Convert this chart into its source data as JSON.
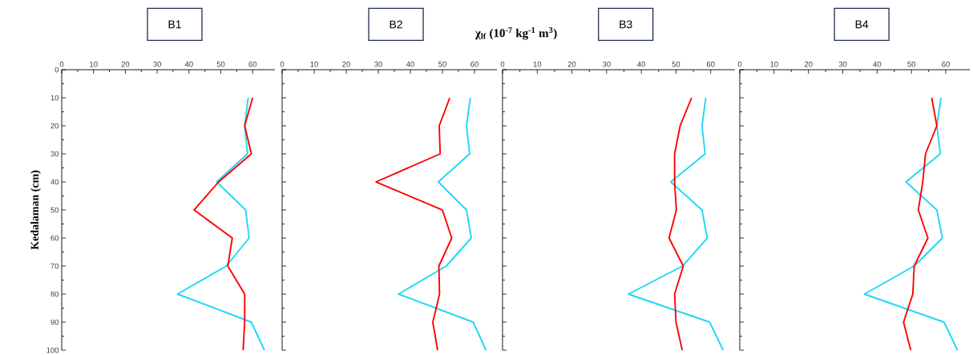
{
  "chart_data": [
    {
      "type": "line",
      "title": "B1",
      "ylabel": "Kedalaman (cm)",
      "orientation": "horizontal",
      "x": [
        10,
        20,
        30,
        40,
        50,
        60,
        70,
        80,
        90,
        100
      ],
      "xlim": [
        0,
        67
      ],
      "xticks": [
        0,
        10,
        20,
        30,
        40,
        50,
        60
      ],
      "ylim": [
        100,
        0
      ],
      "yticks": [
        0,
        10,
        20,
        30,
        40,
        50,
        60,
        70,
        80,
        90,
        100
      ],
      "marker": "none",
      "line_style": "solid",
      "series": [
        {
          "color": "#1ed7f5",
          "values": [
            58.6,
            57.5,
            58.4,
            48.7,
            57.8,
            58.9,
            51.7,
            36.4,
            59.6,
            63.7
          ]
        },
        {
          "color": "#ff0000",
          "values": [
            60,
            57.5,
            59.6,
            49.3,
            41.6,
            53.6,
            52.2,
            57.5,
            57.5,
            57
          ]
        }
      ]
    },
    {
      "type": "line",
      "title": "B2",
      "xlabel": "χ$_{lf}$ (10$^{-7}$ kg$^{-1}$ m$^{3}$)",
      "orientation": "horizontal",
      "x": [
        10,
        20,
        30,
        40,
        50,
        60,
        70,
        80,
        90,
        100
      ],
      "xlim": [
        0,
        67
      ],
      "xticks": [
        0,
        10,
        20,
        30,
        40,
        50,
        60
      ],
      "ylim": [
        100,
        0
      ],
      "yticks": [
        0,
        10,
        20,
        30,
        40,
        50,
        60,
        70,
        80,
        90,
        100
      ],
      "tick_labels": "x",
      "marker": "none",
      "line_style": "solid",
      "series": [
        {
          "color": "#1ed7f5",
          "values": [
            58.7,
            57.5,
            58.5,
            48.7,
            57.5,
            59,
            51.2,
            36.3,
            59.6,
            63.6
          ]
        },
        {
          "color": "#ff0000",
          "values": [
            52.3,
            49,
            49.3,
            29.3,
            50,
            52.9,
            48.9,
            49.1,
            47,
            48.5
          ]
        }
      ]
    },
    {
      "type": "line",
      "title": "B3",
      "orientation": "horizontal",
      "x": [
        10,
        20,
        30,
        40,
        50,
        60,
        70,
        80,
        90,
        100
      ],
      "xlim": [
        0,
        67
      ],
      "xticks": [
        0,
        10,
        20,
        30,
        40,
        50,
        60
      ],
      "ylim": [
        100,
        0
      ],
      "yticks": [
        0,
        10,
        20,
        30,
        40,
        50,
        60,
        70,
        80,
        90,
        100
      ],
      "tick_labels": "x",
      "marker": "none",
      "line_style": "solid",
      "series": [
        {
          "color": "#1ed7f5",
          "values": [
            58.6,
            57.5,
            58.4,
            48.5,
            57.5,
            59,
            51.9,
            36.3,
            59.7,
            63.6
          ]
        },
        {
          "color": "#ff0000",
          "values": [
            54.5,
            51.2,
            49.6,
            49.6,
            50.1,
            48,
            52.1,
            49.6,
            50,
            51.8
          ]
        }
      ]
    },
    {
      "type": "line",
      "title": "B4",
      "orientation": "horizontal",
      "x": [
        10,
        20,
        30,
        40,
        50,
        60,
        70,
        80,
        90,
        100
      ],
      "xlim": [
        0,
        67
      ],
      "xticks": [
        0,
        10,
        20,
        30,
        40,
        50,
        60
      ],
      "ylim": [
        100,
        0
      ],
      "yticks": [
        0,
        10,
        20,
        30,
        40,
        50,
        60,
        70,
        80,
        90,
        100
      ],
      "tick_labels": "x",
      "marker": "none",
      "line_style": "solid",
      "series": [
        {
          "color": "#1ed7f5",
          "values": [
            58.6,
            57.4,
            58.4,
            48.4,
            57.4,
            59,
            50.8,
            36.3,
            59.5,
            63.4
          ]
        },
        {
          "color": "#ff0000",
          "values": [
            55.9,
            57.4,
            54.1,
            53.3,
            52,
            54.8,
            50.8,
            50.4,
            47.7,
            49.8
          ]
        }
      ]
    }
  ]
}
